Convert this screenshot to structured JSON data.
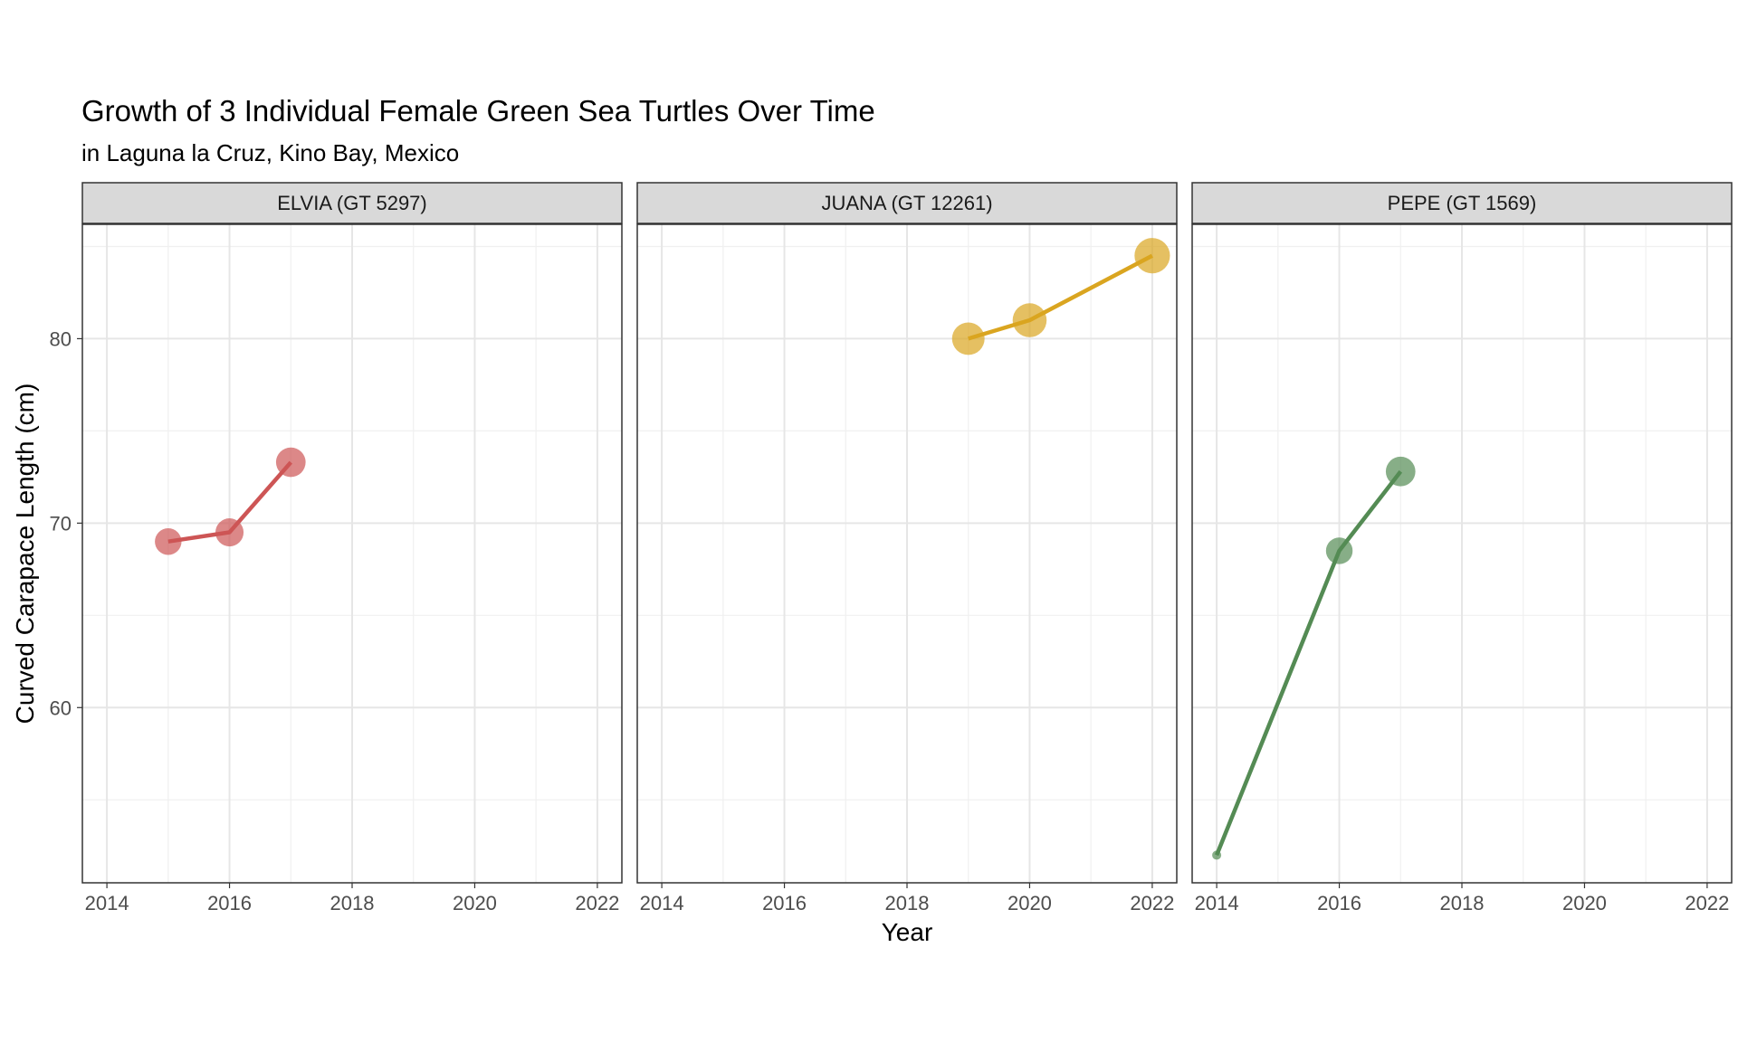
{
  "chart_data": {
    "type": "line",
    "title": "Growth of 3 Individual Female Green Sea Turtles Over Time",
    "subtitle": "in Laguna la Cruz, Kino Bay, Mexico",
    "xlabel": "Year",
    "ylabel": "Curved Carapace Length (cm)",
    "xlim": [
      2013.6,
      2022.4
    ],
    "ylim": [
      50.5,
      86.2
    ],
    "x_ticks": [
      2014,
      2016,
      2018,
      2020,
      2022
    ],
    "y_ticks": [
      60,
      70,
      80
    ],
    "grid": true,
    "legend": "none",
    "facets": [
      {
        "label": "ELVIA (GT 5297)",
        "color": "#CD5555",
        "points": [
          {
            "x": 2015,
            "y": 69.0,
            "size": 2.2
          },
          {
            "x": 2016,
            "y": 69.5,
            "size": 2.3
          },
          {
            "x": 2017,
            "y": 73.3,
            "size": 2.4
          }
        ]
      },
      {
        "label": "JUANA (GT 12261)",
        "color": "#DAA520",
        "points": [
          {
            "x": 2019,
            "y": 80.0,
            "size": 2.6
          },
          {
            "x": 2020,
            "y": 81.0,
            "size": 2.7
          },
          {
            "x": 2022,
            "y": 84.5,
            "size": 2.8
          }
        ]
      },
      {
        "label": "PEPE (GT 1569)",
        "color": "#548B54",
        "points": [
          {
            "x": 2014,
            "y": 52.0,
            "size": 1.0
          },
          {
            "x": 2016,
            "y": 68.5,
            "size": 2.2
          },
          {
            "x": 2017,
            "y": 72.8,
            "size": 2.4
          }
        ]
      }
    ]
  }
}
